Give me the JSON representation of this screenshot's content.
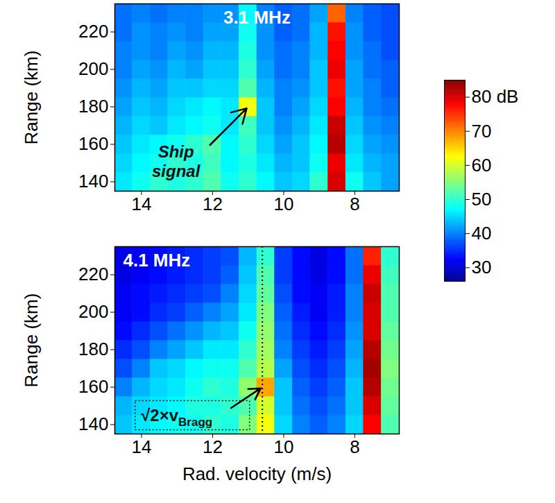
{
  "chart_data": [
    {
      "type": "heatmap",
      "title": "3.1 MHz",
      "y_label": "Range (km)",
      "xlim": [
        14.75,
        6.75
      ],
      "xticks": [
        14,
        12,
        10,
        8
      ],
      "ylim": [
        135,
        235
      ],
      "yticks": [
        140,
        160,
        180,
        200,
        220
      ],
      "x": [
        14.5,
        14,
        13.5,
        13,
        12.5,
        12,
        11.5,
        11,
        10.5,
        10,
        9.5,
        9,
        8.5,
        8,
        7.5,
        7
      ],
      "y": [
        140,
        150,
        160,
        170,
        180,
        190,
        200,
        210,
        220,
        230
      ],
      "cells": [
        [
          46,
          48,
          50,
          49,
          50,
          52,
          48,
          50,
          47,
          44,
          45,
          50,
          80,
          48,
          44,
          42
        ],
        [
          45,
          47,
          48,
          50,
          49,
          51,
          47,
          49,
          46,
          43,
          44,
          48,
          79,
          46,
          43,
          42
        ],
        [
          44,
          46,
          47,
          48,
          50,
          52,
          47,
          50,
          45,
          42,
          44,
          47,
          82,
          45,
          42,
          41
        ],
        [
          43,
          45,
          44,
          46,
          47,
          48,
          46,
          51,
          44,
          41,
          43,
          46,
          81,
          44,
          41,
          40
        ],
        [
          42,
          44,
          43,
          45,
          46,
          47,
          46,
          62,
          44,
          40,
          42,
          45,
          78,
          43,
          40,
          39
        ],
        [
          41,
          43,
          42,
          44,
          44,
          45,
          45,
          52,
          43,
          40,
          41,
          44,
          77,
          42,
          40,
          38
        ],
        [
          40,
          42,
          41,
          43,
          42,
          44,
          44,
          50,
          42,
          39,
          40,
          44,
          79,
          42,
          39,
          38
        ],
        [
          40,
          41,
          40,
          42,
          41,
          43,
          43,
          49,
          41,
          39,
          40,
          43,
          78,
          41,
          39,
          37
        ],
        [
          39,
          41,
          40,
          41,
          40,
          42,
          42,
          48,
          41,
          38,
          39,
          43,
          77,
          41,
          38,
          37
        ],
        [
          39,
          40,
          39,
          40,
          40,
          41,
          41,
          47,
          40,
          38,
          39,
          42,
          72,
          40,
          38,
          37
        ]
      ],
      "annotations": [
        {
          "text": "Ship signal",
          "x": 11,
          "y": 180
        }
      ]
    },
    {
      "type": "heatmap",
      "title": "4.1 MHz",
      "y_label": "Range (km)",
      "x_label": "Rad. velocity (m/s)",
      "xlim": [
        14.75,
        6.75
      ],
      "xticks": [
        14,
        12,
        10,
        8
      ],
      "ylim": [
        135,
        235
      ],
      "yticks": [
        140,
        160,
        180,
        200,
        220
      ],
      "x": [
        14.5,
        14,
        13.5,
        13,
        12.5,
        12,
        11.5,
        11,
        10.5,
        10,
        9.5,
        9,
        8.5,
        8,
        7.5,
        7
      ],
      "y": [
        140,
        150,
        160,
        170,
        180,
        190,
        200,
        210,
        220,
        230
      ],
      "cells": [
        [
          44,
          46,
          47,
          48,
          48,
          50,
          49,
          55,
          62,
          45,
          40,
          38,
          40,
          45,
          78,
          52
        ],
        [
          43,
          45,
          46,
          47,
          49,
          49,
          50,
          52,
          60,
          44,
          39,
          37,
          39,
          44,
          80,
          53
        ],
        [
          40,
          43,
          45,
          46,
          48,
          50,
          49,
          56,
          68,
          44,
          38,
          36,
          38,
          44,
          82,
          54
        ],
        [
          37,
          40,
          44,
          45,
          47,
          48,
          48,
          52,
          58,
          42,
          37,
          35,
          37,
          43,
          83,
          55
        ],
        [
          35,
          37,
          40,
          42,
          44,
          46,
          46,
          50,
          57,
          40,
          36,
          34,
          36,
          42,
          82,
          54
        ],
        [
          33,
          35,
          37,
          39,
          41,
          43,
          44,
          48,
          56,
          39,
          35,
          33,
          35,
          41,
          80,
          53
        ],
        [
          32,
          33,
          35,
          36,
          38,
          40,
          42,
          46,
          55,
          38,
          34,
          32,
          34,
          40,
          80,
          52
        ],
        [
          32,
          33,
          34,
          35,
          36,
          37,
          40,
          45,
          53,
          37,
          33,
          32,
          34,
          40,
          81,
          52
        ],
        [
          31,
          32,
          33,
          34,
          35,
          36,
          38,
          44,
          52,
          36,
          33,
          31,
          33,
          39,
          79,
          51
        ],
        [
          31,
          32,
          33,
          34,
          35,
          36,
          37,
          43,
          50,
          36,
          33,
          31,
          33,
          39,
          76,
          50
        ]
      ],
      "reference_line": {
        "x": 10.6,
        "line_style": "dotted"
      },
      "annotations": [
        {
          "text": "√2×v",
          "subscript": "Bragg",
          "x": 10.6,
          "y": 160
        }
      ]
    }
  ],
  "colorbar": {
    "range": [
      26,
      85
    ],
    "ticks": [
      30,
      40,
      50,
      60,
      70,
      {
        "value": 80,
        "label": "80 dB"
      }
    ]
  }
}
